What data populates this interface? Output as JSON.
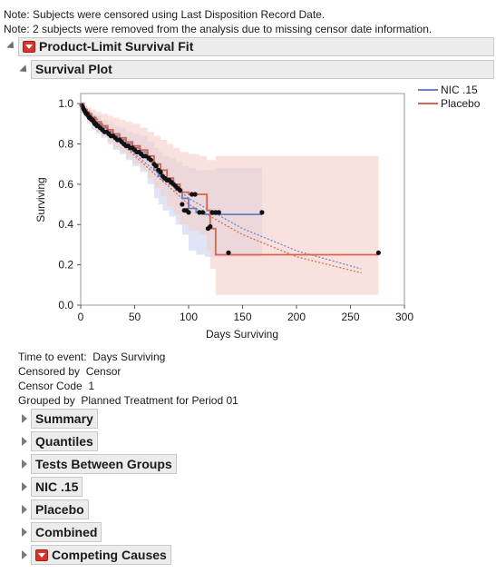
{
  "notes": [
    "Note: Subjects were censored using Last Disposition Record Date.",
    "Note: 2 subjects were removed from the analysis due to missing censor date information."
  ],
  "report": {
    "title": "Product-Limit Survival Fit",
    "plot_title": "Survival Plot"
  },
  "info": {
    "time_to_event_label": "Time to event:",
    "time_to_event_value": "Days Surviving",
    "censored_by_label": "Censored by",
    "censored_by_value": "Censor",
    "censor_code_label": "Censor Code",
    "censor_code_value": "1",
    "grouped_by_label": "Grouped by",
    "grouped_by_value": "Planned Treatment for Period 01"
  },
  "sections": [
    "Summary",
    "Quantiles",
    "Tests Between Groups",
    "NIC .15",
    "Placebo",
    "Combined",
    "Competing Causes"
  ],
  "colors": {
    "nic": "#6b7fc4",
    "placebo": "#d9634f",
    "nic_band": "#c9d3ee",
    "placebo_band": "#f5cfc8",
    "points": "#111111"
  },
  "chart_data": {
    "type": "line",
    "xlabel": "Days Surviving",
    "ylabel": "Surviving",
    "xlim": [
      0,
      300
    ],
    "ylim": [
      0,
      1.05
    ],
    "x_ticks": [
      "0",
      "50",
      "100",
      "150",
      "200",
      "250",
      "300"
    ],
    "y_ticks": [
      "0.0",
      "0.2",
      "0.4",
      "0.6",
      "0.8",
      "1.0"
    ],
    "legend_position": "top-right",
    "series": [
      {
        "name": "NIC .15",
        "x": [
          0,
          3,
          6,
          10,
          14,
          19,
          25,
          30,
          36,
          42,
          48,
          55,
          62,
          68,
          72,
          76,
          82,
          88,
          94,
          100,
          107,
          115,
          125,
          140,
          168
        ],
        "y": [
          1.0,
          0.97,
          0.94,
          0.92,
          0.9,
          0.88,
          0.86,
          0.84,
          0.82,
          0.8,
          0.78,
          0.76,
          0.72,
          0.67,
          0.64,
          0.62,
          0.6,
          0.57,
          0.53,
          0.48,
          0.46,
          0.45,
          0.45,
          0.45,
          0.45
        ],
        "lower": [
          1.0,
          0.93,
          0.9,
          0.87,
          0.85,
          0.83,
          0.8,
          0.77,
          0.75,
          0.72,
          0.69,
          0.66,
          0.6,
          0.53,
          0.5,
          0.47,
          0.44,
          0.4,
          0.35,
          0.27,
          0.25,
          0.24,
          0.24,
          0.24,
          0.24
        ],
        "upper": [
          1.0,
          0.99,
          0.97,
          0.95,
          0.94,
          0.92,
          0.91,
          0.89,
          0.88,
          0.86,
          0.85,
          0.84,
          0.81,
          0.78,
          0.76,
          0.74,
          0.73,
          0.71,
          0.69,
          0.68,
          0.67,
          0.67,
          0.68,
          0.68,
          0.68
        ]
      },
      {
        "name": "Placebo",
        "x": [
          0,
          3,
          6,
          10,
          14,
          19,
          25,
          30,
          36,
          42,
          48,
          55,
          62,
          68,
          74,
          80,
          86,
          92,
          100,
          110,
          117,
          120,
          125,
          276
        ],
        "y": [
          1.0,
          0.97,
          0.95,
          0.93,
          0.91,
          0.89,
          0.87,
          0.85,
          0.83,
          0.81,
          0.79,
          0.77,
          0.74,
          0.7,
          0.67,
          0.63,
          0.6,
          0.56,
          0.55,
          0.55,
          0.47,
          0.38,
          0.25,
          0.25
        ],
        "lower": [
          1.0,
          0.94,
          0.91,
          0.89,
          0.86,
          0.84,
          0.81,
          0.78,
          0.76,
          0.73,
          0.7,
          0.68,
          0.63,
          0.58,
          0.54,
          0.49,
          0.45,
          0.4,
          0.37,
          0.35,
          0.27,
          0.18,
          0.05,
          0.04
        ],
        "upper": [
          1.0,
          0.99,
          0.98,
          0.97,
          0.96,
          0.95,
          0.94,
          0.93,
          0.92,
          0.91,
          0.9,
          0.88,
          0.86,
          0.84,
          0.82,
          0.8,
          0.78,
          0.76,
          0.75,
          0.74,
          0.72,
          0.72,
          0.74,
          0.74
        ]
      }
    ],
    "fit_curves": [
      {
        "series": "NIC .15",
        "x": [
          0,
          50,
          100,
          150,
          200,
          260
        ],
        "y": [
          1.0,
          0.75,
          0.53,
          0.38,
          0.27,
          0.18
        ]
      },
      {
        "series": "Placebo",
        "x": [
          0,
          50,
          100,
          150,
          200,
          260
        ],
        "y": [
          1.0,
          0.74,
          0.5,
          0.35,
          0.24,
          0.16
        ]
      }
    ],
    "censored_points": {
      "x": [
        1,
        2,
        3,
        4,
        5,
        6,
        7,
        8,
        9,
        10,
        11,
        12,
        13,
        14,
        15,
        16,
        18,
        20,
        22,
        24,
        26,
        28,
        30,
        32,
        34,
        36,
        38,
        40,
        42,
        44,
        46,
        48,
        50,
        52,
        54,
        56,
        58,
        60,
        63,
        65,
        68,
        70,
        72,
        74,
        76,
        78,
        80,
        82,
        84,
        86,
        88,
        90,
        92,
        94,
        96,
        98,
        100,
        103,
        106,
        110,
        113,
        118,
        120,
        122,
        125,
        128,
        137,
        168,
        276
      ],
      "y": [
        0.99,
        0.98,
        0.97,
        0.96,
        0.95,
        0.95,
        0.94,
        0.93,
        0.93,
        0.92,
        0.92,
        0.91,
        0.9,
        0.9,
        0.89,
        0.89,
        0.88,
        0.87,
        0.86,
        0.86,
        0.85,
        0.84,
        0.84,
        0.83,
        0.82,
        0.82,
        0.81,
        0.8,
        0.79,
        0.79,
        0.78,
        0.78,
        0.77,
        0.76,
        0.76,
        0.75,
        0.74,
        0.74,
        0.73,
        0.72,
        0.7,
        0.69,
        0.67,
        0.66,
        0.64,
        0.63,
        0.62,
        0.62,
        0.61,
        0.6,
        0.59,
        0.58,
        0.57,
        0.5,
        0.47,
        0.47,
        0.46,
        0.55,
        0.55,
        0.46,
        0.46,
        0.38,
        0.39,
        0.46,
        0.46,
        0.46,
        0.26,
        0.46,
        0.26
      ]
    }
  }
}
